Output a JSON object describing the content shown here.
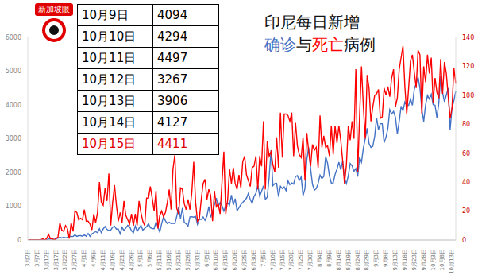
{
  "chart_data": {
    "type": "line",
    "title": "印尼每日新增",
    "subtitle": "确诊与死亡病例",
    "logo": "新加坡眼",
    "grid": false,
    "table": {
      "rows": [
        [
          "10月9日",
          4094
        ],
        [
          "10月10日",
          4294
        ],
        [
          "10月11日",
          4497
        ],
        [
          "10月12日",
          3267
        ],
        [
          "10月13日",
          3906
        ],
        [
          "10月14日",
          4127
        ],
        [
          "10月15日",
          4411
        ]
      ]
    },
    "categories": [
      "3月2日",
      null,
      null,
      null,
      null,
      "3月7日",
      null,
      null,
      null,
      null,
      "3月12日",
      null,
      null,
      null,
      null,
      "3月17日",
      null,
      null,
      null,
      null,
      "3月22日",
      null,
      null,
      null,
      null,
      "3月27日",
      null,
      null,
      null,
      null,
      "4月1日",
      null,
      null,
      null,
      null,
      "4月6日",
      null,
      null,
      null,
      null,
      "4月11日",
      null,
      null,
      null,
      null,
      "4月16日",
      null,
      null,
      null,
      null,
      "4月21日",
      null,
      null,
      null,
      null,
      "4月26日",
      null,
      null,
      null,
      null,
      "5月1日",
      null,
      null,
      null,
      null,
      "5月6日",
      null,
      null,
      null,
      null,
      "5月11日",
      null,
      null,
      null,
      null,
      "5月16日",
      null,
      null,
      null,
      null,
      "5月21日",
      null,
      null,
      null,
      null,
      "5月26日",
      null,
      null,
      null,
      null,
      "5月31日",
      null,
      null,
      null,
      null,
      "6月5日",
      null,
      null,
      null,
      null,
      "6月10日",
      null,
      null,
      null,
      null,
      "6月15日",
      null,
      null,
      null,
      null,
      "6月20日",
      null,
      null,
      null,
      null,
      "6月25日",
      null,
      null,
      null,
      null,
      "6月30日",
      null,
      null,
      null,
      null,
      "7月5日",
      null,
      null,
      null,
      null,
      "7月10日",
      null,
      null,
      null,
      null,
      "7月15日",
      null,
      null,
      null,
      null,
      "7月20日",
      null,
      null,
      null,
      null,
      "7月25日",
      null,
      null,
      null,
      null,
      "7月30日",
      null,
      null,
      null,
      null,
      "8月4日",
      null,
      null,
      null,
      null,
      "8月9日",
      null,
      null,
      null,
      null,
      "8月14日",
      null,
      null,
      null,
      null,
      "8月19日",
      null,
      null,
      null,
      null,
      "8月24日",
      null,
      null,
      null,
      null,
      "8月29日",
      null,
      null,
      null,
      null,
      "9月3日",
      null,
      null,
      null,
      null,
      "9月8日",
      null,
      null,
      null,
      null,
      "9月13日",
      null,
      null,
      null,
      null,
      "9月18日",
      null,
      null,
      null,
      null,
      "9月23日",
      null,
      null,
      null,
      null,
      "9月28日",
      null,
      null,
      null,
      null,
      "10月3日",
      null,
      null,
      null,
      null,
      "10月8日",
      null,
      null,
      null,
      null,
      "10月13日",
      null,
      null
    ],
    "ylim": [
      0,
      6000
    ],
    "yticks": [
      0,
      1000,
      2000,
      3000,
      4000,
      5000,
      6000
    ],
    "y2lim": [
      0,
      140
    ],
    "y2ticks": [
      0,
      20,
      40,
      60,
      80,
      100,
      120,
      140
    ],
    "series": [
      {
        "name": "确诊",
        "color": "#4472c4",
        "values": [
          2,
          0,
          0,
          2,
          0,
          2,
          2,
          13,
          8,
          7,
          0,
          35,
          27,
          21,
          17,
          38,
          55,
          82,
          60,
          81,
          64,
          65,
          106,
          105,
          103,
          153,
          109,
          130,
          129,
          114,
          149,
          113,
          196,
          106,
          181,
          218,
          247,
          218,
          337,
          219,
          330,
          399,
          316,
          282,
          297,
          380,
          407,
          325,
          327,
          185,
          375,
          283,
          357,
          436,
          396,
          275,
          214,
          415,
          260,
          347,
          433,
          292,
          349,
          395,
          484,
          367,
          338,
          336,
          533,
          387,
          233,
          484,
          689,
          568,
          490,
          529,
          489,
          496,
          486,
          693,
          973,
          634,
          949,
          526,
          479,
          415,
          686,
          687,
          678,
          700,
          467,
          609,
          609,
          684,
          585,
          703,
          993,
          672,
          847,
          1043,
          1241,
          979,
          1111,
          1014,
          857,
          1017,
          1106,
          1031,
          1331,
          1041,
          1226,
          862,
          954,
          1051,
          1113,
          1178,
          1241,
          1385,
          1198,
          1082,
          1293,
          1385,
          1624,
          1301,
          1447,
          1607,
          1209,
          1268,
          1853,
          2657,
          1611,
          1671,
          1681,
          1282,
          1591,
          1522,
          1574,
          1462,
          1752,
          1639,
          1693,
          1655,
          1882,
          1906,
          1761,
          1868,
          1315,
          1525,
          2381,
          2748,
          2109,
          1651,
          1473,
          1519,
          1679,
          1922,
          1815,
          1882,
          2473,
          2277,
          1893,
          1687,
          1693,
          1942,
          2098,
          2307,
          2081,
          2345,
          1821,
          1673,
          1902,
          2266,
          2197,
          2037,
          2117,
          1877,
          2447,
          2306,
          2719,
          3003,
          3308,
          2858,
          2743,
          2775,
          3075,
          3622,
          3269,
          3444,
          3444,
          2880,
          3046,
          3307,
          3861,
          3737,
          3806,
          3636,
          3141,
          3507,
          3963,
          3822,
          4090,
          3989,
          3989,
          4176,
          3989,
          4465,
          4634,
          4823,
          4494,
          3874,
          3509,
          4002,
          4284,
          4174,
          4317,
          4007,
          3992,
          3622,
          4056,
          4850,
          4369,
          4094,
          4294,
          4497,
          3267,
          3906,
          4127,
          4411
        ]
      },
      {
        "name": "死亡",
        "color": "#ff0000",
        "axis": "y2",
        "values": [
          0,
          0,
          0,
          0,
          0,
          0,
          0,
          0,
          1,
          0,
          1,
          4,
          1,
          1,
          0,
          1,
          2,
          12,
          7,
          6,
          10,
          8,
          1,
          12,
          6,
          20,
          19,
          14,
          15,
          14,
          21,
          13,
          13,
          11,
          7,
          18,
          12,
          19,
          40,
          26,
          24,
          36,
          27,
          46,
          10,
          26,
          38,
          24,
          13,
          19,
          12,
          27,
          17,
          14,
          11,
          18,
          10,
          18,
          10,
          27,
          19,
          13,
          10,
          29,
          29,
          37,
          29,
          20,
          34,
          8,
          17,
          20,
          16,
          19,
          26,
          35,
          21,
          49,
          59,
          22,
          18,
          36,
          35,
          25,
          21,
          28,
          21,
          33,
          54,
          26,
          13,
          15,
          28,
          39,
          42,
          28,
          35,
          31,
          13,
          34,
          23,
          25,
          18,
          40,
          61,
          18,
          28,
          49,
          39,
          50,
          39,
          35,
          45,
          36,
          54,
          58,
          45,
          41,
          37,
          50,
          51,
          58,
          35,
          58,
          51,
          82,
          35,
          68,
          58,
          61,
          52,
          47,
          71,
          50,
          88,
          57,
          87,
          87,
          86,
          82,
          88,
          58,
          81,
          65,
          59,
          57,
          71,
          41,
          74,
          61,
          51,
          66,
          62,
          64,
          50,
          86,
          64,
          72,
          64,
          65,
          58,
          79,
          59,
          79,
          67,
          79,
          69,
          55,
          39,
          52,
          79,
          69,
          82,
          70,
          118,
          47,
          86,
          120,
          92,
          70,
          114,
          105,
          82,
          92,
          100,
          101,
          104,
          84,
          85,
          105,
          100,
          106,
          99,
          112,
          118,
          92,
          98,
          118,
          126,
          134,
          106,
          87,
          105,
          124,
          128,
          116,
          105,
          131,
          128,
          87,
          120,
          109,
          128,
          115,
          126,
          95,
          112,
          102,
          98,
          125,
          101,
          123,
          115,
          99,
          84,
          91,
          119,
          108
        ]
      }
    ]
  }
}
